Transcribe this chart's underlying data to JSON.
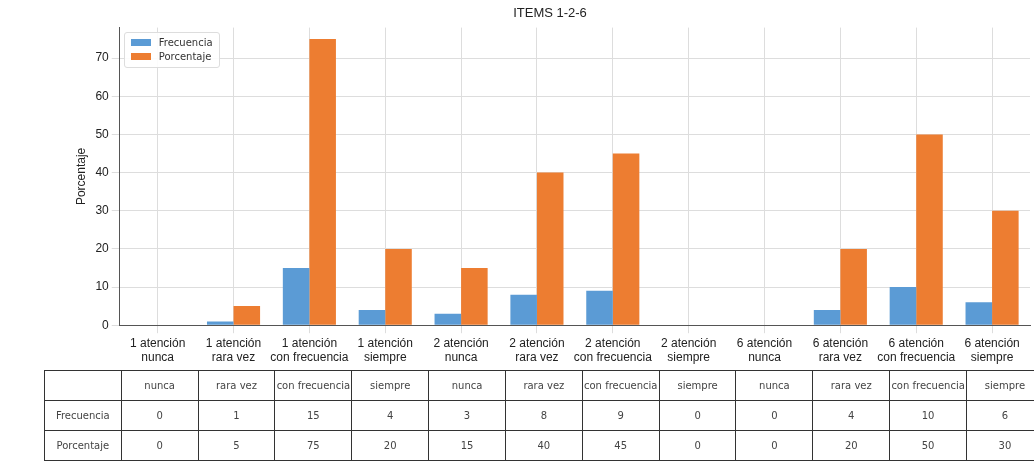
{
  "chart_data": {
    "type": "bar",
    "title": "ITEMS 1-2-6",
    "ylabel": "Porcentaje",
    "categories": [
      "1 atención\nnunca",
      "1 atención\nrara vez",
      "1 atención\ncon frecuencia",
      "1 atención\nsiempre",
      "2 atención\nnunca",
      "2 atención\nrara vez",
      "2 atención\ncon frecuencia",
      "2 atención\nsiempre",
      "6 atención\nnunca",
      "6 atención\nrara vez",
      "6 atención\ncon frecuencia",
      "6 atención\nsiempre"
    ],
    "series": [
      {
        "name": "Frecuencia",
        "color": "#5b9bd5",
        "values": [
          0,
          1,
          15,
          4,
          3,
          8,
          9,
          0,
          0,
          4,
          10,
          6
        ]
      },
      {
        "name": "Porcentaje",
        "color": "#ed7d31",
        "values": [
          0,
          5,
          75,
          20,
          15,
          40,
          45,
          0,
          0,
          20,
          50,
          30
        ]
      }
    ],
    "annotations": [
      "nunca",
      "rara vez",
      "con frecuencia",
      "siempre",
      "nunca",
      "rara vez",
      "con frecuencia",
      "siempre",
      "nunca",
      "rara vez",
      "con frecuencia",
      "siempre"
    ],
    "ylim": [
      0,
      78
    ],
    "yticks": [
      0,
      10,
      20,
      30,
      40,
      50,
      60,
      70
    ],
    "grid": true,
    "legend": "top left",
    "data_labels": true
  }
}
